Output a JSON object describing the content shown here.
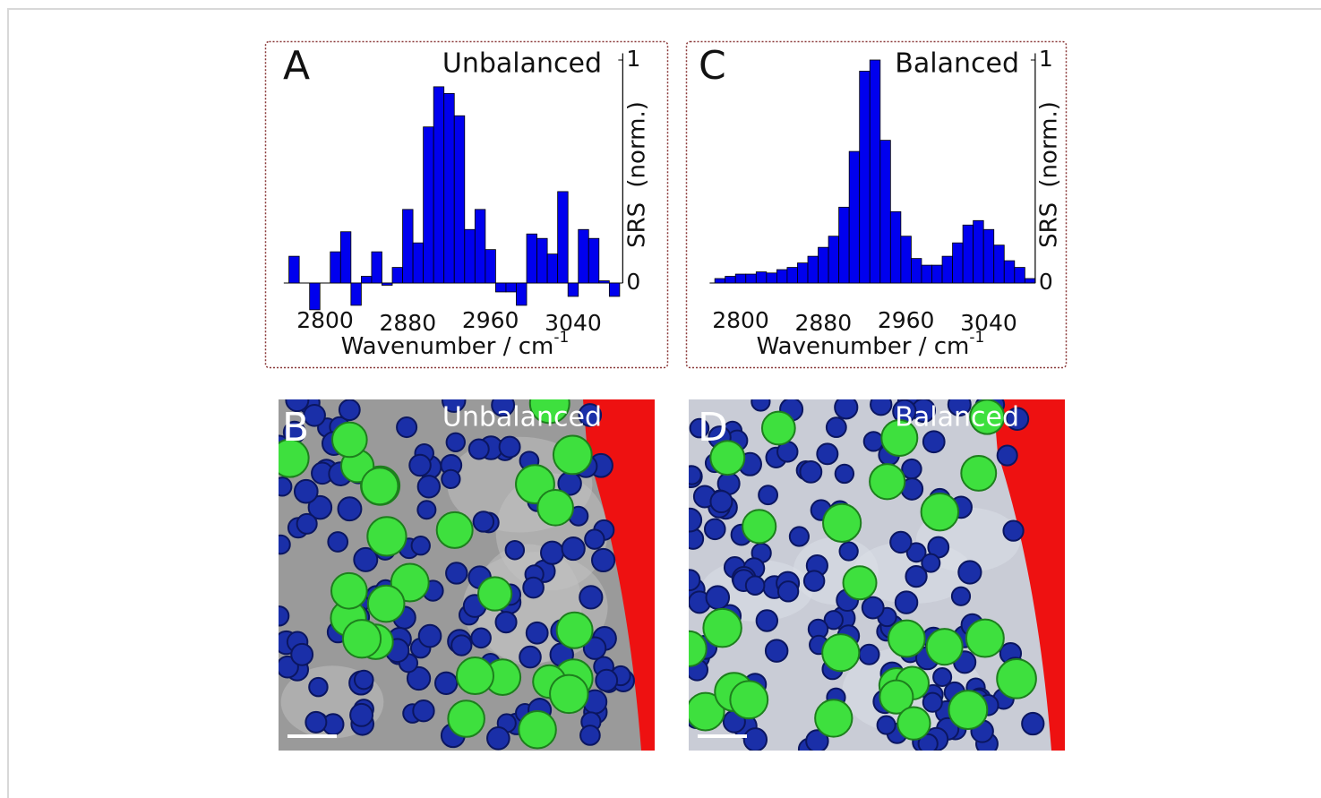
{
  "chart_data": [
    {
      "type": "bar",
      "panel_label": "A",
      "title": "Unbalanced",
      "x_label": "Wavenumber / cm",
      "x_label_sup": "-1",
      "y_label": "SRS (norm.)",
      "x": [
        2770,
        2780,
        2790,
        2800,
        2810,
        2820,
        2830,
        2840,
        2850,
        2860,
        2870,
        2880,
        2890,
        2900,
        2910,
        2920,
        2930,
        2940,
        2950,
        2960,
        2970,
        2980,
        2990,
        3000,
        3010,
        3020,
        3030,
        3040,
        3050,
        3060,
        3070,
        3080
      ],
      "values": [
        0.12,
        0.0,
        -0.12,
        0.0,
        0.14,
        0.23,
        -0.1,
        0.03,
        0.14,
        -0.01,
        0.07,
        0.33,
        0.18,
        0.7,
        0.88,
        0.85,
        0.75,
        0.24,
        0.33,
        0.15,
        -0.04,
        -0.04,
        -0.1,
        0.22,
        0.2,
        0.13,
        0.41,
        -0.06,
        0.24,
        0.2,
        0.01,
        -0.06
      ],
      "color": "#0000ee",
      "xlim": [
        2760,
        3088
      ],
      "ylim": [
        -0.13,
        1.03
      ],
      "xticks": [
        2800,
        2880,
        2960,
        3040
      ],
      "yticks": [
        0,
        1
      ]
    },
    {
      "type": "bar",
      "panel_label": "C",
      "title": "Balanced",
      "x_label": "Wavenumber / cm",
      "x_label_sup": "-1",
      "y_label": "SRS (norm.)",
      "x": [
        2780,
        2790,
        2800,
        2810,
        2820,
        2830,
        2840,
        2850,
        2860,
        2870,
        2880,
        2890,
        2900,
        2910,
        2920,
        2930,
        2940,
        2950,
        2960,
        2970,
        2980,
        2990,
        3000,
        3010,
        3020,
        3030,
        3040,
        3050,
        3060,
        3070,
        3080
      ],
      "values": [
        0.02,
        0.03,
        0.04,
        0.04,
        0.05,
        0.045,
        0.06,
        0.07,
        0.09,
        0.12,
        0.16,
        0.21,
        0.34,
        0.59,
        0.95,
        1.0,
        0.64,
        0.32,
        0.21,
        0.11,
        0.08,
        0.08,
        0.12,
        0.18,
        0.26,
        0.28,
        0.24,
        0.17,
        0.1,
        0.07,
        0.02
      ],
      "color": "#0000ee",
      "xlim": [
        2770,
        3085
      ],
      "ylim": [
        -0.13,
        1.03
      ],
      "xticks": [
        2800,
        2880,
        2960,
        3040
      ],
      "yticks": [
        0,
        1
      ]
    }
  ],
  "images": [
    {
      "label": "B",
      "title": "Unbalanced"
    },
    {
      "label": "D",
      "title": "Balanced"
    }
  ]
}
